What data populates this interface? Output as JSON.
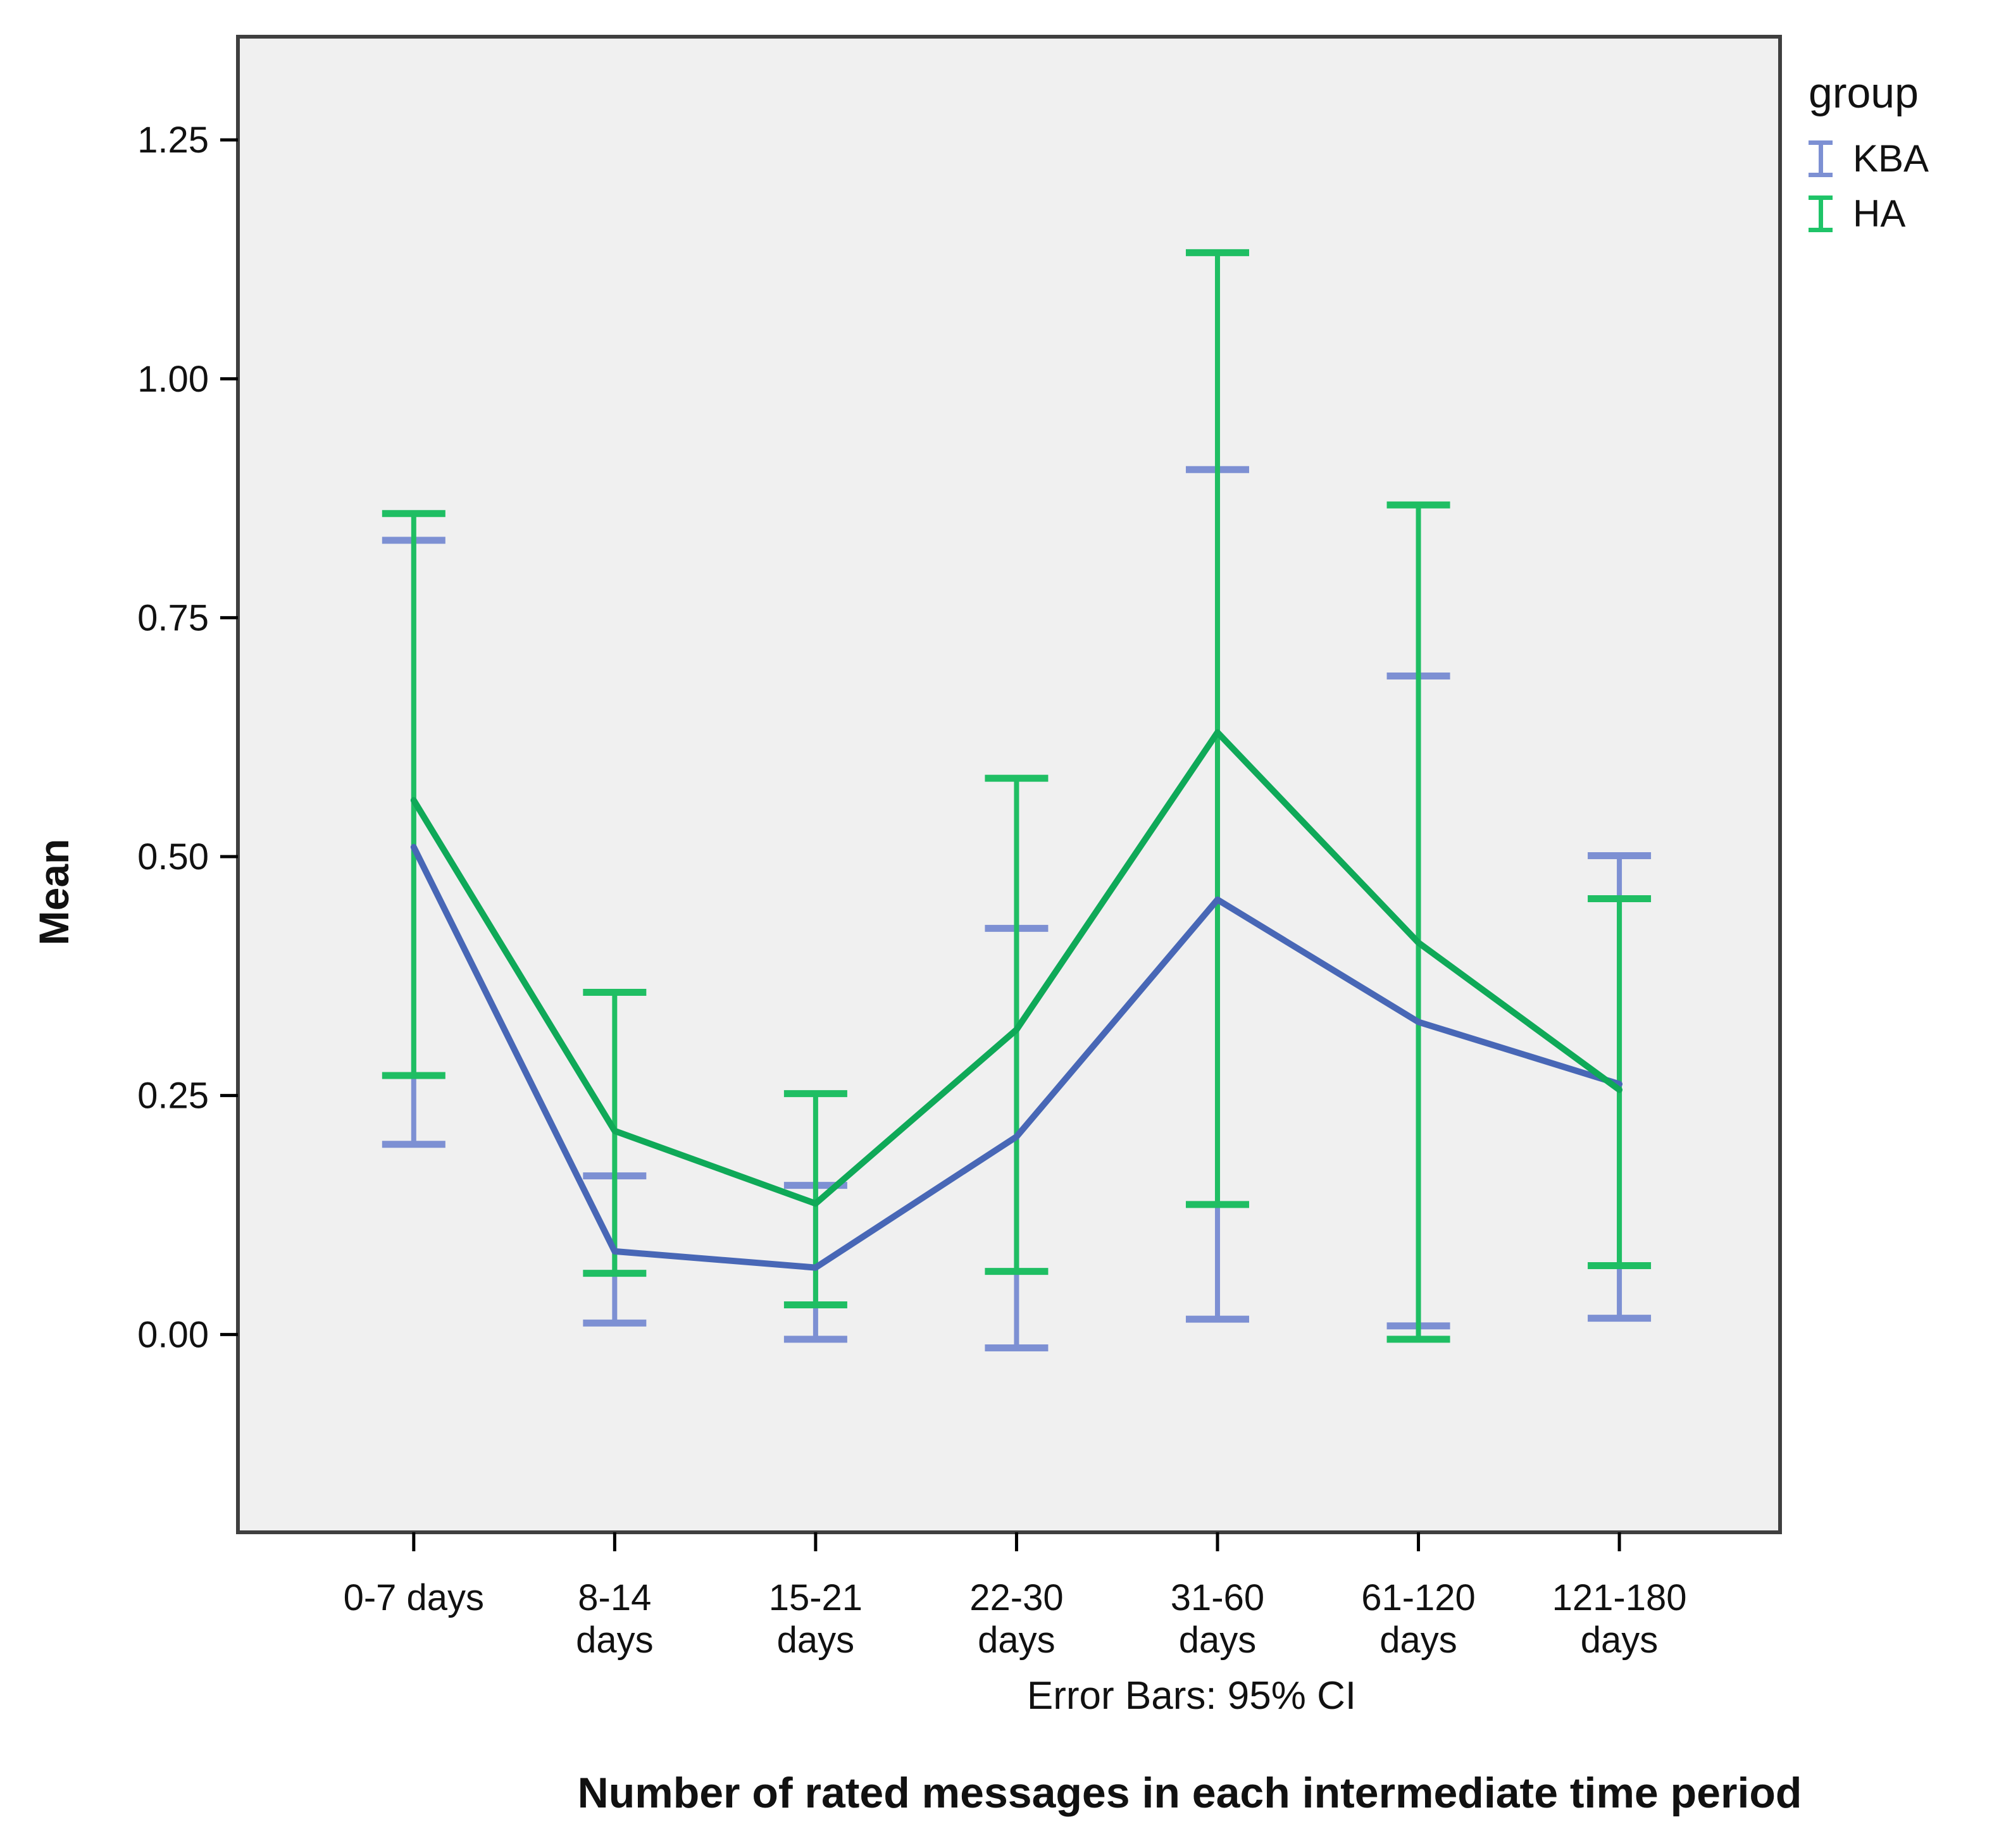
{
  "chart_data": {
    "type": "line",
    "title": "",
    "xlabel": "",
    "ylabel": "Mean",
    "annotation": "Error Bars: 95% CI",
    "caption": "Number of rated messages in each intermediate time period",
    "categories": [
      [
        "0-7 days"
      ],
      [
        "8-14",
        "days"
      ],
      [
        "15-21",
        "days"
      ],
      [
        "22-30",
        "days"
      ],
      [
        "31-60",
        "days"
      ],
      [
        "61-120",
        "days"
      ],
      [
        "121-180",
        "days"
      ]
    ],
    "series": [
      {
        "name": "KBA",
        "line_color": "#4867B6",
        "error_color": "#7D90D3",
        "means": [
          0.51,
          0.087,
          0.07,
          0.207,
          0.455,
          0.327,
          0.262
        ],
        "ci_upper": [
          0.831,
          0.166,
          0.156,
          0.425,
          0.905,
          0.689,
          0.501
        ],
        "ci_lower": [
          0.199,
          0.012,
          -0.005,
          -0.014,
          0.016,
          0.009,
          0.017
        ]
      },
      {
        "name": "HA",
        "line_color": "#0FA958",
        "error_color": "#1FBE63",
        "means": [
          0.559,
          0.213,
          0.137,
          0.319,
          0.63,
          0.41,
          0.256
        ],
        "ci_upper": [
          0.859,
          0.358,
          0.252,
          0.582,
          1.132,
          0.868,
          0.456
        ],
        "ci_lower": [
          0.271,
          0.064,
          0.031,
          0.066,
          0.136,
          -0.005,
          0.072
        ]
      }
    ],
    "yticks": {
      "values": [
        0.0,
        0.25,
        0.5,
        0.75,
        1.0,
        1.25
      ],
      "labels": [
        "0.00",
        "0.25",
        "0.50",
        "0.75",
        "1.00",
        "1.25"
      ]
    },
    "ylim": [
      -0.207,
      1.358
    ],
    "grid": false,
    "error_bars": "95% CI",
    "legend": {
      "title": "group",
      "position": "top-right-outside",
      "entries": [
        {
          "label": "KBA",
          "color": "#7D90D3"
        },
        {
          "label": "HA",
          "color": "#1FC468"
        }
      ]
    },
    "colors": {
      "plot_background": "#F0F0F0",
      "frame": "#3F3F3F",
      "tick": "#000000",
      "text": "#111111"
    }
  }
}
